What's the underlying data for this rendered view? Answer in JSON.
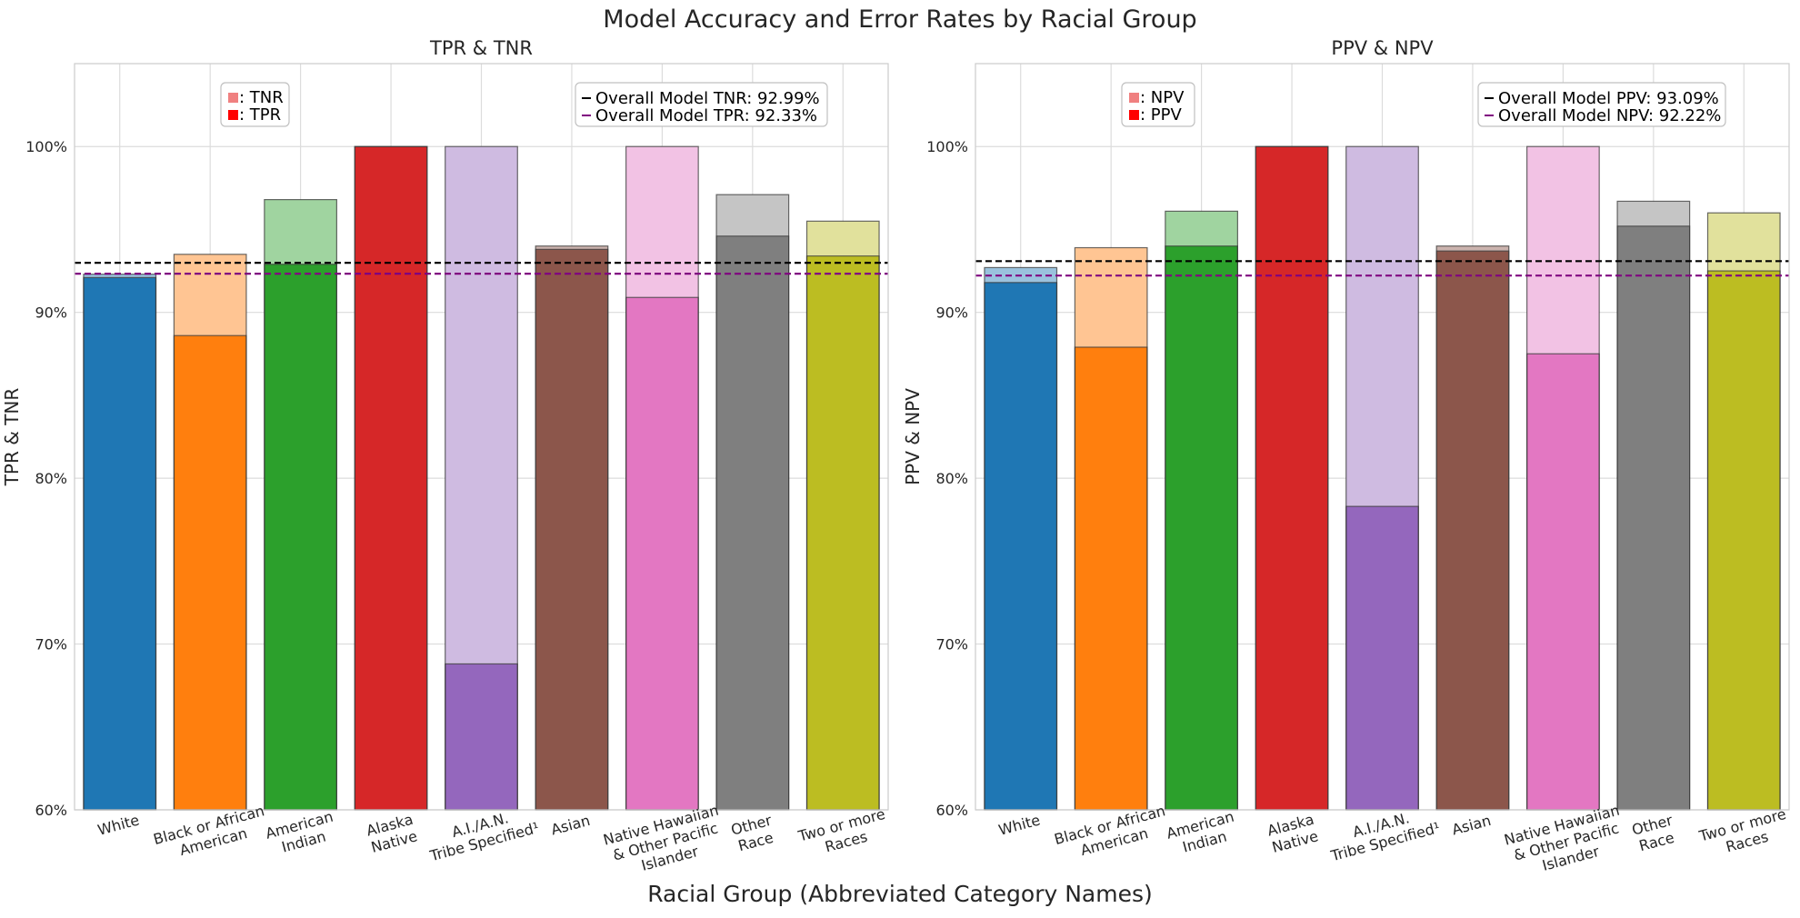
{
  "figure": {
    "title": "Model Accuracy and Error Rates by Racial Group",
    "xlabel": "Racial Group (Abbreviated Category Names)"
  },
  "colors": [
    "#1f77b4",
    "#ff7f0e",
    "#2ca02c",
    "#d62728",
    "#9467bd",
    "#8c564b",
    "#e377c2",
    "#7f7f7f",
    "#bcbd22"
  ],
  "chart_data": [
    {
      "type": "bar",
      "title": "TPR & TNR",
      "ylabel": "TPR & TNR",
      "ylim": [
        60,
        105
      ],
      "yticks": [
        "60%",
        "70%",
        "80%",
        "90%",
        "100%"
      ],
      "grid": true,
      "categories": [
        [
          "White"
        ],
        [
          "Black or African",
          "American"
        ],
        [
          "American",
          "Indian"
        ],
        [
          "Alaska",
          "Native"
        ],
        [
          "A.I./A.N.",
          "Tribe Specified¹"
        ],
        [
          "Asian"
        ],
        [
          "Native Hawaiian",
          "& Other Pacific",
          "Islander"
        ],
        [
          "Other",
          "Race"
        ],
        [
          "Two or more",
          "Races"
        ]
      ],
      "series": [
        {
          "name": "TNR",
          "values": [
            92.3,
            93.5,
            96.8,
            100,
            100,
            94.0,
            100,
            97.1,
            95.5
          ]
        },
        {
          "name": "TPR",
          "values": [
            92.1,
            88.6,
            92.9,
            100,
            68.8,
            93.8,
            90.9,
            94.6,
            93.4
          ]
        }
      ],
      "legend": {
        "placement": "top-left",
        "entries": [
          ": TNR",
          ": TPR"
        ]
      },
      "reference_lines": [
        {
          "label": "Overall Model TNR:  92.99%",
          "value": 92.99,
          "color": "#000000"
        },
        {
          "label": "Overall Model TPR:  92.33%",
          "value": 92.33,
          "color": "#800080"
        }
      ]
    },
    {
      "type": "bar",
      "title": "PPV & NPV",
      "ylabel": "PPV & NPV",
      "ylim": [
        60,
        105
      ],
      "yticks": [
        "60%",
        "70%",
        "80%",
        "90%",
        "100%"
      ],
      "grid": true,
      "categories": [
        [
          "White"
        ],
        [
          "Black or African",
          "American"
        ],
        [
          "American",
          "Indian"
        ],
        [
          "Alaska",
          "Native"
        ],
        [
          "A.I./A.N.",
          "Tribe Specified¹"
        ],
        [
          "Asian"
        ],
        [
          "Native Hawaiian",
          "& Other Pacific",
          "Islander"
        ],
        [
          "Other",
          "Race"
        ],
        [
          "Two or more",
          "Races"
        ]
      ],
      "series": [
        {
          "name": "NPV",
          "values": [
            91.8,
            93.9,
            94.0,
            100,
            78.3,
            93.7,
            87.5,
            95.2,
            92.5
          ]
        },
        {
          "name": "PPV",
          "values": [
            92.7,
            87.9,
            96.1,
            100,
            100,
            94.0,
            100,
            96.7,
            96.0
          ]
        }
      ],
      "legend": {
        "placement": "top-left",
        "entries": [
          ": NPV",
          ": PPV"
        ]
      },
      "reference_lines": [
        {
          "label": "Overall Model PPV:  93.09%",
          "value": 93.09,
          "color": "#000000"
        },
        {
          "label": "Overall Model NPV:  92.22%",
          "value": 92.22,
          "color": "#800080"
        }
      ]
    }
  ]
}
